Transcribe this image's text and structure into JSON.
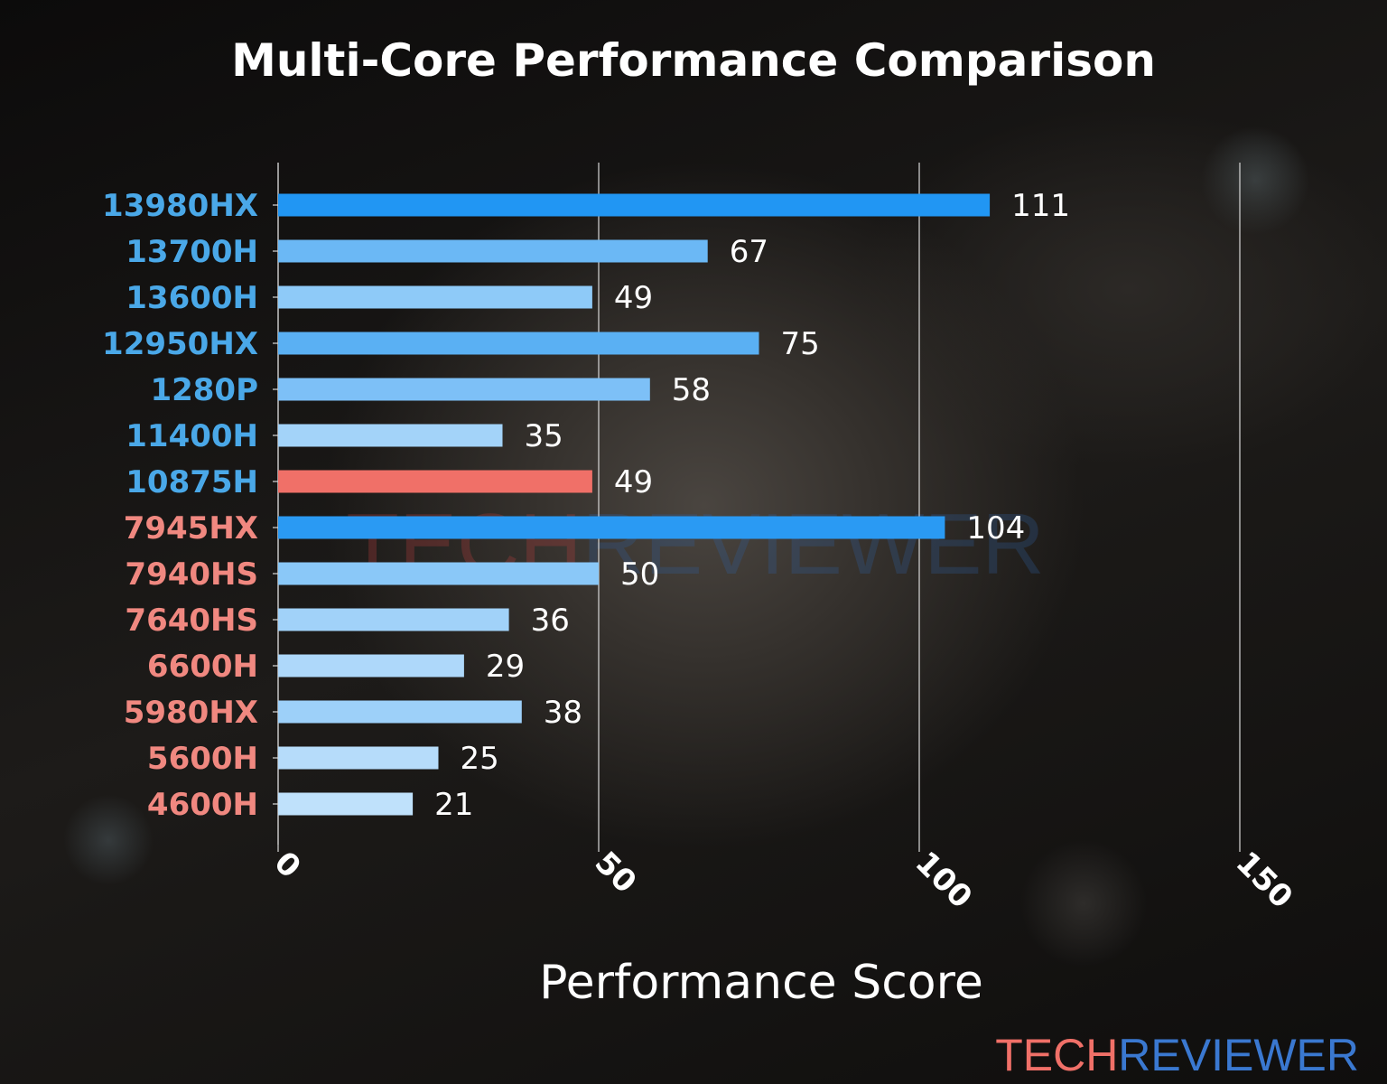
{
  "chart_data": {
    "type": "bar",
    "orientation": "horizontal",
    "title": "Multi-Core Performance Comparison",
    "xlabel": "Performance Score",
    "ylabel": "",
    "xlim": [
      0,
      150
    ],
    "xticks": [
      0,
      50,
      100,
      150
    ],
    "grid": "vertical",
    "categories": [
      "13980HX",
      "13700H",
      "13600H",
      "12950HX",
      "1280P",
      "11400H",
      "10875H",
      "7945HX",
      "7940HS",
      "7640HS",
      "6600H",
      "5980HX",
      "5600H",
      "4600H"
    ],
    "values": [
      111,
      67,
      49,
      75,
      58,
      35,
      49,
      104,
      50,
      36,
      29,
      38,
      25,
      21
    ],
    "label_colors": [
      "#4aa8e8",
      "#4aa8e8",
      "#4aa8e8",
      "#4aa8e8",
      "#4aa8e8",
      "#4aa8e8",
      "#4aa8e8",
      "#f08880",
      "#f08880",
      "#f08880",
      "#f08880",
      "#f08880",
      "#f08880",
      "#f08880"
    ],
    "bar_colors": [
      "#2196f3",
      "#6bb8f5",
      "#8ecaf8",
      "#5ab0f3",
      "#7dc0f7",
      "#a3d3f9",
      "#f07068",
      "#2a9af3",
      "#8ac8f8",
      "#a1d2f9",
      "#aed8fa",
      "#9dd0f9",
      "#b6dcfa",
      "#bfe1fb"
    ],
    "highlight": "10875H"
  },
  "watermark": {
    "part1": "TECH",
    "part2": "REVIEWER",
    "color1": "#f07068",
    "color2": "#3a78d0"
  }
}
